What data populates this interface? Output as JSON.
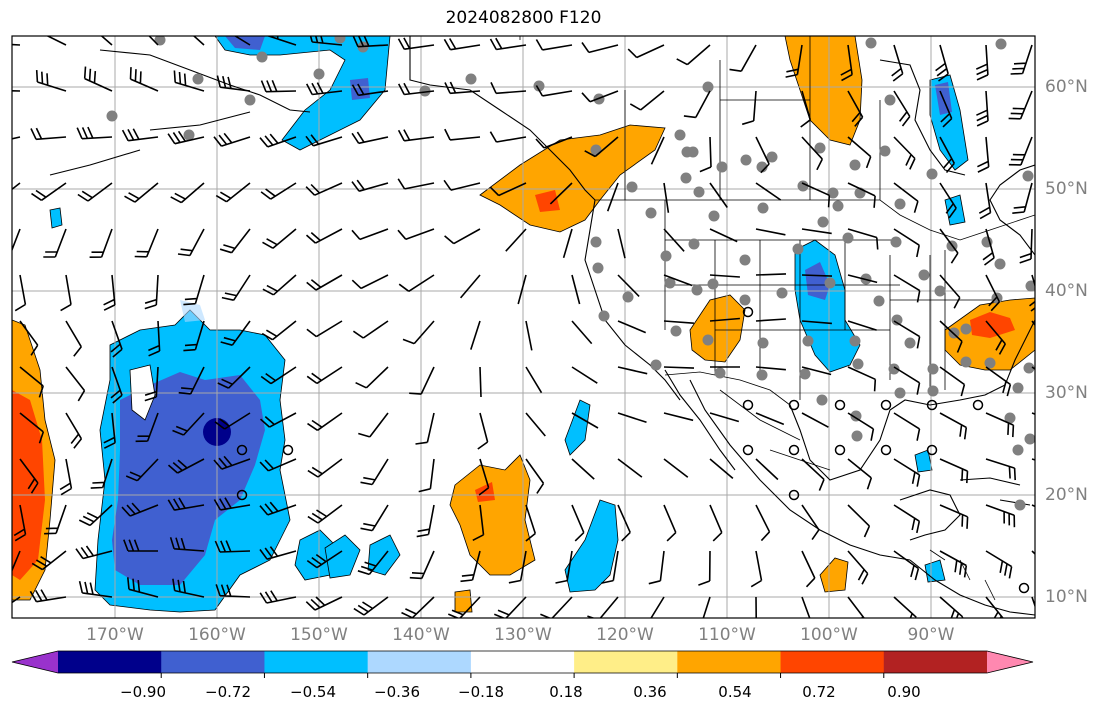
{
  "title": "2024082800 F120",
  "lat_labels": [
    "60°N",
    "50°N",
    "40°N",
    "30°N",
    "20°N",
    "10°N"
  ],
  "lon_labels": [
    "170°W",
    "160°W",
    "150°W",
    "140°W",
    "130°W",
    "120°W",
    "110°W",
    "100°W",
    "90°W"
  ],
  "colorbar": {
    "ticks": [
      "−0.90",
      "−0.72",
      "−0.54",
      "−0.36",
      "−0.18",
      "0.18",
      "0.36",
      "0.54",
      "0.72",
      "0.90"
    ],
    "colors": [
      "#9932cc",
      "#00008b",
      "#4060d0",
      "#00bfff",
      "#add8ff",
      "#ffffff",
      "#ffee88",
      "#ffa500",
      "#ff4500",
      "#b22222",
      "#ff88b0"
    ]
  },
  "shading_colors": {
    "dark_blue": "#00008b",
    "royal_blue": "#4060d0",
    "sky_blue": "#00bfff",
    "light_blue": "#add8ff",
    "orange": "#ffa500",
    "red_orange": "#ff4500"
  },
  "station_marker_color": "#808080"
}
